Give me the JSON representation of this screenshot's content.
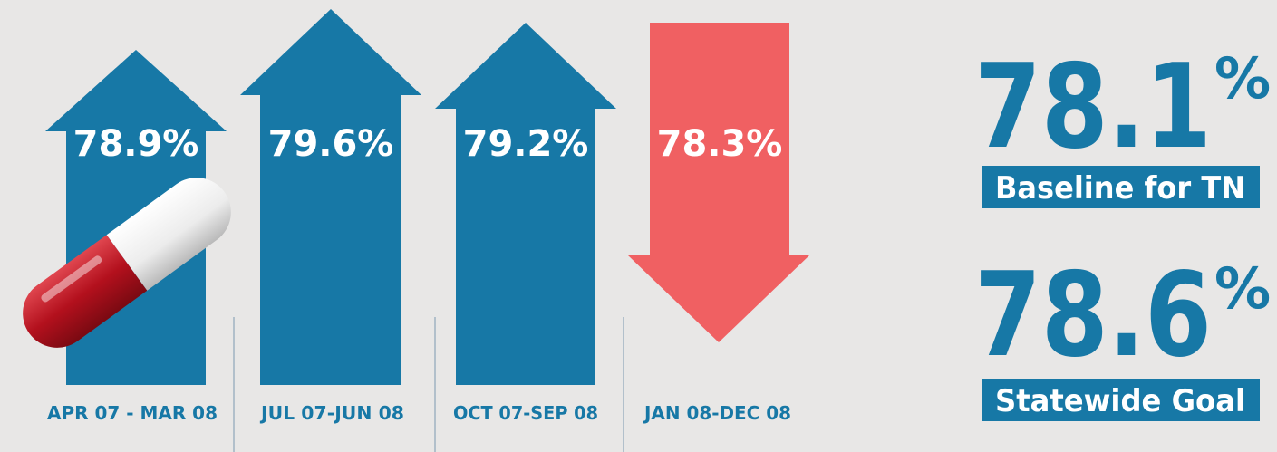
{
  "periods": [
    {
      "value": "78.9%",
      "label": "APR 07 - MAR 08"
    },
    {
      "value": "79.6%",
      "label": "JUL 07-JUN 08"
    },
    {
      "value": "79.2%",
      "label": "OCT 07-SEP 08"
    },
    {
      "value": "78.3%",
      "label": "JAN 08-DEC 08"
    }
  ],
  "stats": [
    {
      "number": "78.1",
      "unit": "%",
      "caption": "Baseline for TN"
    },
    {
      "number": "78.6",
      "unit": "%",
      "caption": "Statewide Goal"
    }
  ]
}
